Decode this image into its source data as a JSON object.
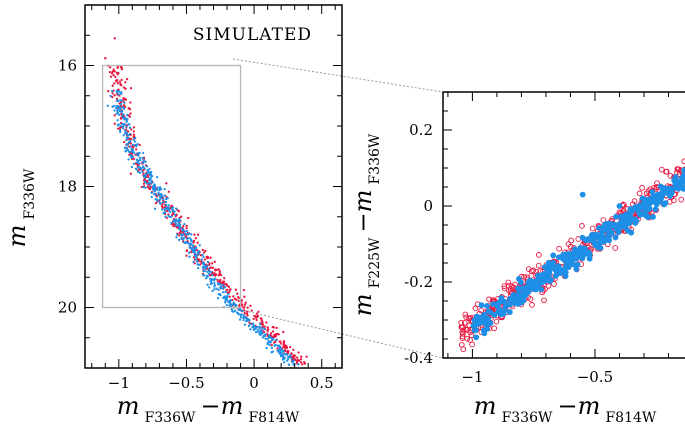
{
  "chart_data": [
    {
      "type": "scatter",
      "title": "",
      "annotation": "SIMULATED",
      "xlabel": {
        "main": "m",
        "sub1": "F336W",
        "sep": "−m",
        "sub2": "F814W"
      },
      "ylabel": {
        "main": "m",
        "sub": "F336W"
      },
      "xlim": [
        -1.25,
        0.65
      ],
      "ylim": [
        21.0,
        15.0
      ],
      "y_inverted": true,
      "xticks": [
        -1,
        -0.5,
        0,
        0.5
      ],
      "xtick_labels": [
        "−1",
        "−0.5",
        "0",
        "0.5"
      ],
      "yticks": [
        16,
        18,
        20
      ],
      "ytick_labels": [
        "16",
        "18",
        "20"
      ],
      "legend": "none",
      "grid": false,
      "zoom_box": {
        "x": [
          -1.12,
          -0.1
        ],
        "y": [
          16.0,
          20.0
        ]
      },
      "series": [
        {
          "color": "#e8173f",
          "marker": "dot",
          "ridge": [
            [
              -1.06,
              16.0
            ],
            [
              -0.98,
              17.0
            ],
            [
              -0.85,
              17.8
            ],
            [
              -0.62,
              18.5
            ],
            [
              -0.38,
              19.3
            ],
            [
              -0.1,
              20.0
            ],
            [
              0.12,
              20.5
            ],
            [
              0.33,
              20.95
            ]
          ]
        },
        {
          "color": "#1e8fe6",
          "marker": "dot",
          "ridge": [
            [
              -1.0,
              16.4
            ],
            [
              -0.95,
              17.1
            ],
            [
              -0.82,
              17.7
            ],
            [
              -0.65,
              18.3
            ],
            [
              -0.5,
              18.8
            ],
            [
              -0.32,
              19.5
            ],
            [
              -0.14,
              20.0
            ],
            [
              0.1,
              20.5
            ],
            [
              0.3,
              20.95
            ]
          ]
        }
      ]
    },
    {
      "type": "scatter",
      "title": "",
      "xlabel": {
        "main": "m",
        "sub1": "F336W",
        "sep": "−m",
        "sub2": "F814W"
      },
      "ylabel": {
        "main": "m",
        "sub1": "F225W",
        "sep": "−m",
        "sub2": "F336W"
      },
      "xlim": [
        -1.12,
        -0.1
      ],
      "ylim": [
        -0.4,
        0.3
      ],
      "xticks": [
        -1,
        -0.5
      ],
      "xtick_labels": [
        "−1",
        "−0.5"
      ],
      "yticks": [
        0.2,
        0,
        -0.2,
        -0.4
      ],
      "ytick_labels": [
        "0.2",
        "0",
        "-0.2",
        "-0.4"
      ],
      "legend": "none",
      "grid": false,
      "series": [
        {
          "color": "#e8173f",
          "marker": "open-circle",
          "relation": {
            "slope": 0.448,
            "intercept": 0.135,
            "x_range": [
              -1.05,
              -0.1
            ]
          }
        },
        {
          "color": "#1e8fe6",
          "marker": "filled-circle",
          "relation": {
            "slope": 0.448,
            "intercept": 0.13,
            "x_range": [
              -1.0,
              -0.1
            ]
          }
        }
      ]
    }
  ]
}
